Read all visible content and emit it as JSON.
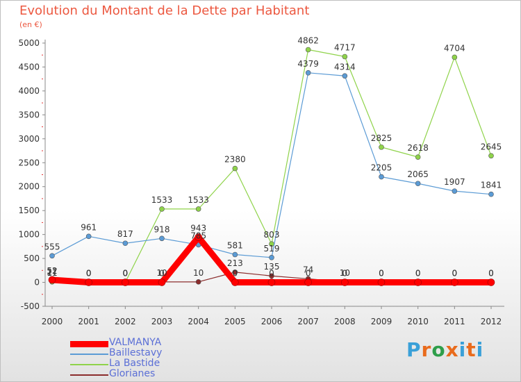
{
  "title": "Evolution du Montant de la Dette par Habitant",
  "subtitle": "(en €)",
  "logo": {
    "text": "Proxiti",
    "colors": [
      "#3aa0d8",
      "#e96b1c",
      "#2e9e4a",
      "#e96b1c",
      "#3aa0d8",
      "#e96b1c",
      "#3aa0d8"
    ]
  },
  "chart_data": {
    "type": "line",
    "title": "Evolution du Montant de la Dette par Habitant",
    "ylabel": "(en €)",
    "ylim": [
      -500,
      5000
    ],
    "yticks": [
      -500,
      0,
      500,
      1000,
      1500,
      2000,
      2500,
      3000,
      3500,
      4000,
      4500,
      5000
    ],
    "x": [
      2000,
      2001,
      2002,
      2003,
      2004,
      2005,
      2006,
      2007,
      2008,
      2009,
      2010,
      2011,
      2012
    ],
    "grid": false,
    "legend": "bottom-left",
    "series": [
      {
        "name": "VALMANYA",
        "color": "#ff0000",
        "values": [
          52,
          0,
          0,
          0,
          943,
          0,
          0,
          0,
          0,
          0,
          0,
          0,
          0
        ],
        "labels": [
          "52",
          "0",
          "0",
          "0",
          "943",
          "0",
          "0",
          "0",
          "0",
          "0",
          "0",
          "0",
          "0"
        ]
      },
      {
        "name": "Baillestavy",
        "color": "#5b9bd5",
        "values": [
          555,
          961,
          817,
          918,
          785,
          581,
          519,
          4379,
          4314,
          2205,
          2065,
          1907,
          1841
        ],
        "labels": [
          "555",
          "961",
          "817",
          "918",
          "785",
          "581",
          "519",
          "4379",
          "4314",
          "2205",
          "2065",
          "1907",
          "1841"
        ]
      },
      {
        "name": "La Bastide",
        "color": "#8fd34a",
        "values": [
          11,
          0,
          0,
          1533,
          1533,
          2380,
          803,
          4862,
          4717,
          2825,
          2618,
          4704,
          2645
        ],
        "labels": [
          "11",
          "0",
          "0",
          "1533",
          "1533",
          "2380",
          "803",
          "4862",
          "4717",
          "2825",
          "2618",
          "4704",
          "2645"
        ]
      },
      {
        "name": "Glorianes",
        "color": "#8b2c2c",
        "values": [
          27,
          0,
          0,
          10,
          10,
          213,
          135,
          74,
          10,
          0,
          0,
          0,
          0
        ],
        "labels": [
          "27",
          "0",
          "0",
          "10",
          "10",
          "213",
          "135",
          "74",
          "10",
          "0",
          "0",
          "0",
          "0"
        ]
      }
    ]
  }
}
